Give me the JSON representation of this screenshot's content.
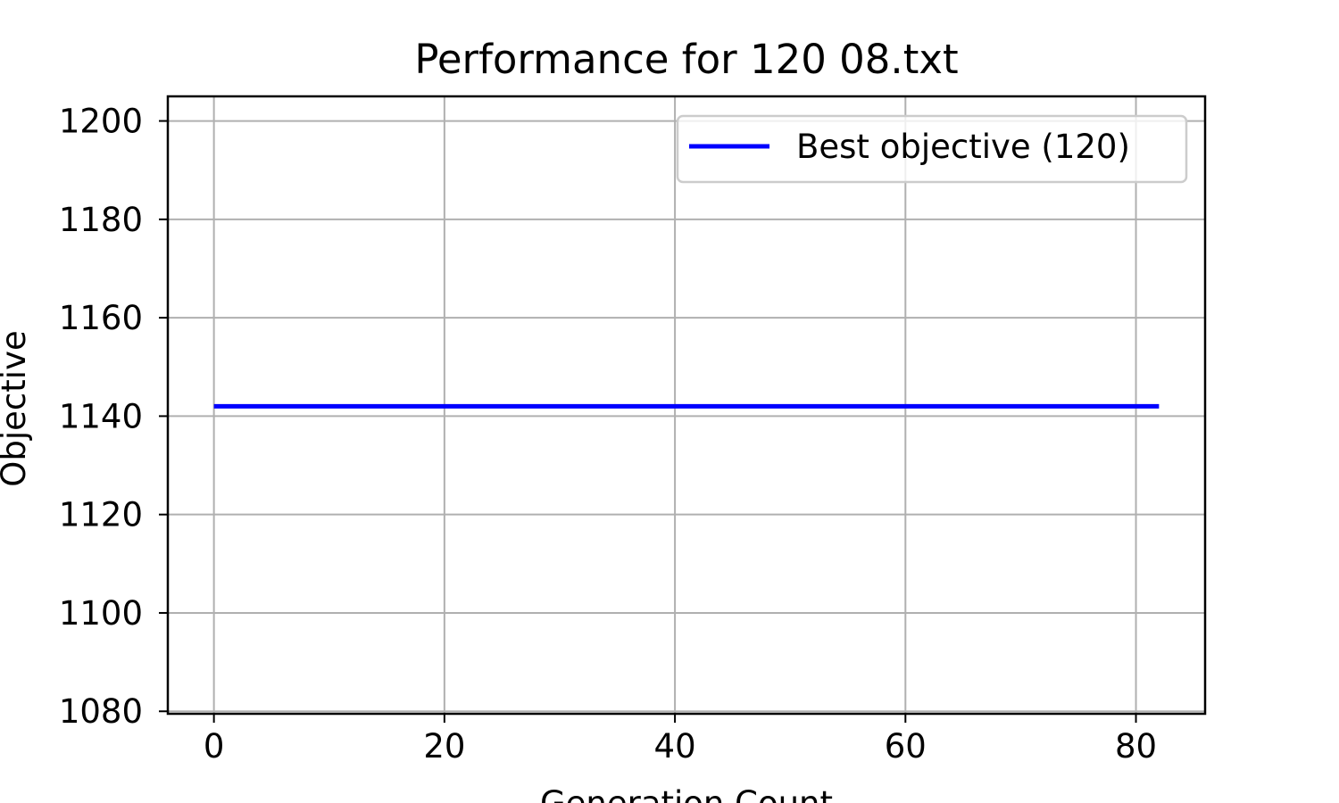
{
  "chart_data": {
    "type": "line",
    "title": "Performance for 120 08.txt",
    "xlabel": "Generation Count",
    "ylabel": "Objective",
    "xlim": [
      -4,
      86
    ],
    "ylim": [
      1079.5,
      1205
    ],
    "xticks": [
      0,
      20,
      40,
      60,
      80
    ],
    "yticks": [
      1080,
      1100,
      1120,
      1140,
      1160,
      1180,
      1200
    ],
    "grid": true,
    "legend_position": "top-right",
    "series": [
      {
        "name": "Best objective (120)",
        "color": "#0000ff",
        "x": [
          0,
          82
        ],
        "y": [
          1142,
          1142
        ]
      }
    ]
  }
}
